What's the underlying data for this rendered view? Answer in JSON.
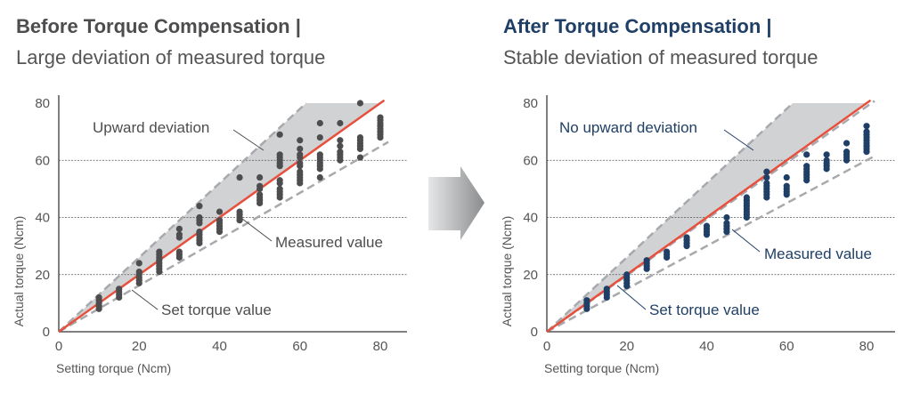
{
  "colors": {
    "before_accent": "#4d4d4f",
    "after_accent": "#1f3f66",
    "set_line": "#e8503e",
    "band": "#d1d2d4",
    "dash": "#a7a9ac",
    "grid": "#555555"
  },
  "left": {
    "title": "Before Torque Compensation |",
    "subtitle": "Large deviation of measured torque"
  },
  "right": {
    "title": "After Torque Compensation |",
    "subtitle": "Stable deviation of measured torque"
  },
  "arrow": {
    "icon": "right-arrow-icon"
  },
  "chart_data": [
    {
      "type": "scatter",
      "title": "Before Torque Compensation | Large deviation of measured torque",
      "xlabel": "Setting torque (Ncm)",
      "ylabel": "Actual torque (Ncm)",
      "xlim": [
        0,
        85
      ],
      "ylim": [
        0,
        80
      ],
      "xticks": [
        "0",
        "20",
        "40",
        "60",
        "80"
      ],
      "yticks": [
        "0",
        "20",
        "40",
        "60",
        "80"
      ],
      "gridlines_y": [
        20,
        40,
        60
      ],
      "reference_line": {
        "name": "Set torque value",
        "slope": 1
      },
      "band_upper": {
        "slope": 1.3,
        "cap": 80
      },
      "band_lower": {
        "slope": 0.81
      },
      "annotations": [
        "Upward deviation",
        "Measured value",
        "Set torque value"
      ],
      "series": [
        {
          "x": 10,
          "y": [
            8,
            9,
            10,
            11,
            12
          ]
        },
        {
          "x": 15,
          "y": [
            12,
            13,
            14,
            15
          ]
        },
        {
          "x": 20,
          "y": [
            17,
            18,
            19,
            20,
            21,
            24
          ]
        },
        {
          "x": 25,
          "y": [
            21,
            22,
            23,
            24,
            25,
            26,
            27,
            28
          ]
        },
        {
          "x": 30,
          "y": [
            26,
            27,
            28,
            33,
            34,
            36
          ]
        },
        {
          "x": 35,
          "y": [
            31,
            32,
            33,
            34,
            35,
            38,
            39,
            40,
            44
          ]
        },
        {
          "x": 40,
          "y": [
            35,
            36,
            37,
            38,
            39,
            42
          ]
        },
        {
          "x": 45,
          "y": [
            39,
            40,
            41,
            42,
            54
          ]
        },
        {
          "x": 50,
          "y": [
            45,
            46,
            47,
            48,
            50,
            51,
            54
          ]
        },
        {
          "x": 55,
          "y": [
            47,
            48,
            49,
            50,
            52,
            53,
            58,
            59,
            60,
            61,
            62,
            69
          ]
        },
        {
          "x": 60,
          "y": [
            52,
            53,
            54,
            55,
            56,
            58,
            59,
            61,
            62,
            64,
            67
          ]
        },
        {
          "x": 65,
          "y": [
            54,
            57,
            58,
            59,
            60,
            61,
            62,
            68,
            73
          ]
        },
        {
          "x": 70,
          "y": [
            60,
            61,
            62,
            63,
            65,
            67,
            73
          ]
        },
        {
          "x": 75,
          "y": [
            61,
            64,
            65,
            66,
            67,
            68,
            80
          ]
        },
        {
          "x": 80,
          "y": [
            68,
            69,
            70,
            71,
            72,
            73,
            74,
            75
          ]
        }
      ]
    },
    {
      "type": "scatter",
      "title": "After Torque Compensation | Stable deviation of measured torque",
      "xlabel": "Setting torque (Ncm)",
      "ylabel": "Actual torque (Ncm)",
      "xlim": [
        0,
        85
      ],
      "ylim": [
        0,
        80
      ],
      "xticks": [
        "0",
        "20",
        "40",
        "60",
        "80"
      ],
      "yticks": [
        "0",
        "20",
        "40",
        "60",
        "80"
      ],
      "gridlines_y": [
        20,
        40,
        60
      ],
      "reference_line": {
        "name": "Set torque value",
        "slope": 1
      },
      "band_upper": {
        "slope": 1.3,
        "cap": 80
      },
      "band_lower": {
        "slope": 0.75
      },
      "band_lower2": {
        "slope": 0.985
      },
      "annotations": [
        "No upward deviation",
        "Measured value",
        "Set torque value"
      ],
      "series": [
        {
          "x": 10,
          "y": [
            8,
            9,
            10,
            11
          ]
        },
        {
          "x": 15,
          "y": [
            12,
            13,
            14,
            15
          ]
        },
        {
          "x": 20,
          "y": [
            16,
            17,
            18,
            19,
            20
          ]
        },
        {
          "x": 25,
          "y": [
            22,
            23,
            24,
            25
          ]
        },
        {
          "x": 30,
          "y": [
            26,
            27,
            28
          ]
        },
        {
          "x": 35,
          "y": [
            30,
            31,
            32,
            33
          ]
        },
        {
          "x": 40,
          "y": [
            34,
            35,
            36,
            37
          ]
        },
        {
          "x": 45,
          "y": [
            35,
            36,
            37,
            38,
            40
          ]
        },
        {
          "x": 50,
          "y": [
            40,
            41,
            42,
            43,
            44,
            45,
            46,
            47
          ]
        },
        {
          "x": 55,
          "y": [
            47,
            48,
            49,
            50,
            51,
            52,
            54,
            56
          ]
        },
        {
          "x": 60,
          "y": [
            48,
            49,
            50,
            51,
            54
          ]
        },
        {
          "x": 65,
          "y": [
            53,
            54,
            55,
            56,
            57,
            58,
            62
          ]
        },
        {
          "x": 70,
          "y": [
            57,
            58,
            59,
            60,
            62
          ]
        },
        {
          "x": 75,
          "y": [
            60,
            61,
            62,
            63,
            66
          ]
        },
        {
          "x": 80,
          "y": [
            63,
            64,
            65,
            66,
            67,
            68,
            69,
            70,
            72
          ]
        }
      ]
    }
  ]
}
